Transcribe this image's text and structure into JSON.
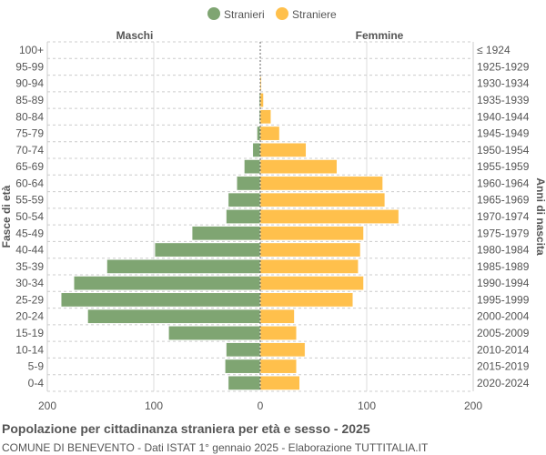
{
  "chart_data": {
    "type": "bar",
    "orientation": "horizontal-pyramid",
    "title": "Popolazione per cittadinanza straniera per età e sesso - 2025",
    "subtitle": "COMUNE DI BENEVENTO - Dati ISTAT 1° gennaio 2025 - Elaborazione TUTTITALIA.IT",
    "ylabel_left": "Fasce di età",
    "ylabel_right": "Anni di nascita",
    "left_header": "Maschi",
    "right_header": "Femmine",
    "xlim": [
      -200,
      200
    ],
    "x_ticks": [
      "200",
      "100",
      "0",
      "100",
      "200"
    ],
    "grid": true,
    "legend_position": "top",
    "categories": [
      "100+",
      "95-99",
      "90-94",
      "85-89",
      "80-84",
      "75-79",
      "70-74",
      "65-69",
      "60-64",
      "55-59",
      "50-54",
      "45-49",
      "40-44",
      "35-39",
      "30-34",
      "25-29",
      "20-24",
      "15-19",
      "10-14",
      "5-9",
      "0-4"
    ],
    "birth_years": [
      "≤ 1924",
      "1925-1929",
      "1930-1934",
      "1935-1939",
      "1940-1944",
      "1945-1949",
      "1950-1954",
      "1955-1959",
      "1960-1964",
      "1965-1969",
      "1970-1974",
      "1975-1979",
      "1980-1984",
      "1985-1989",
      "1990-1994",
      "1995-1999",
      "2000-2004",
      "2005-2009",
      "2010-2014",
      "2015-2019",
      "2020-2024"
    ],
    "series": [
      {
        "name": "Stranieri",
        "color": "#7fa572",
        "side": "left",
        "values": [
          0,
          0,
          0,
          1,
          1,
          3,
          7,
          15,
          22,
          30,
          32,
          64,
          99,
          144,
          175,
          187,
          162,
          86,
          32,
          33,
          30
        ]
      },
      {
        "name": "Straniere",
        "color": "#ffc04c",
        "side": "right",
        "values": [
          0,
          0,
          1,
          3,
          10,
          18,
          43,
          72,
          115,
          117,
          130,
          97,
          94,
          92,
          97,
          87,
          32,
          34,
          42,
          34,
          37
        ]
      }
    ]
  }
}
